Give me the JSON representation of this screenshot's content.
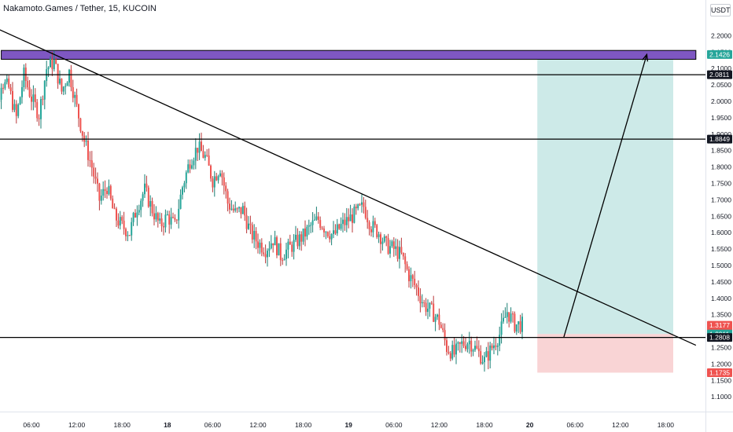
{
  "header": {
    "title": "Nakamoto.Games / Tether, 15, KUCOIN",
    "currency": "USDT"
  },
  "colors": {
    "up": "#26a69a",
    "down": "#ef5350",
    "wick_up": "#1b7f74",
    "wick_down": "#b8383a",
    "target_zone": "#b2dfdb",
    "stop_zone": "#f8c9ca",
    "resistance_box": "#7e57c2",
    "line": "#000000"
  },
  "chart_data": {
    "type": "candlestick",
    "title": "Nakamoto.Games / Tether, 15, KUCOIN",
    "exchange": "KUCOIN",
    "interval": "15",
    "ylim": [
      1.07,
      2.25
    ],
    "y_ticks": [
      "2.2000",
      "2.1500",
      "2.1000",
      "2.0500",
      "2.0000",
      "1.9500",
      "1.9000",
      "1.8500",
      "1.8000",
      "1.7500",
      "1.7000",
      "1.6500",
      "1.6000",
      "1.5500",
      "1.5000",
      "1.4500",
      "1.4000",
      "1.3500",
      "1.3000",
      "1.2500",
      "1.2000",
      "1.1500",
      "1.1000"
    ],
    "x_ticks": [
      "06:00",
      "12:00",
      "18:00",
      "18",
      "06:00",
      "12:00",
      "18:00",
      "19",
      "06:00",
      "12:00",
      "18:00",
      "20",
      "06:00",
      "12:00",
      "18:00"
    ],
    "x_tick_hours": [
      6,
      12,
      18,
      24,
      30,
      36,
      42,
      48,
      54,
      60,
      66,
      72,
      78,
      84,
      90
    ],
    "price_labels": [
      {
        "label": "2.1426",
        "value": 2.1426,
        "color": "#26a69a"
      },
      {
        "label": "2.0811",
        "value": 2.0811,
        "color": "#131722"
      },
      {
        "label": "1.8849",
        "value": 1.8849,
        "color": "#131722"
      },
      {
        "label": "1.3177",
        "value": 1.3177,
        "color": "#ef5350",
        "sub": "11:55"
      },
      {
        "label": "1.2911",
        "value": 1.2911,
        "color": "#26a69a"
      },
      {
        "label": "1.2808",
        "value": 1.2808,
        "color": "#131722"
      },
      {
        "label": "1.1735",
        "value": 1.1735,
        "color": "#ef5350"
      }
    ],
    "horizontal_lines": [
      2.0811,
      1.8849,
      1.2808
    ],
    "resistance_zone": {
      "from_hour": 2,
      "to_hour": 94,
      "top": 2.155,
      "bottom": 2.128
    },
    "trendline": [
      [
        -3,
        2.268
      ],
      [
        94,
        1.257
      ]
    ],
    "position": {
      "entry": 1.2911,
      "target": 2.1426,
      "stop": 1.1735,
      "from_hour": 73,
      "to_hour": 91
    },
    "arrow": [
      [
        76.5,
        1.2808
      ],
      [
        87.5,
        2.1426
      ]
    ],
    "candle_anchors": [
      [
        0,
        1.8
      ],
      [
        1,
        1.93
      ],
      [
        2,
        2.06
      ],
      [
        3,
        2.04
      ],
      [
        4,
        1.95
      ],
      [
        5,
        2.08
      ],
      [
        6,
        2.01
      ],
      [
        7,
        1.96
      ],
      [
        8,
        2.1
      ],
      [
        9,
        2.12
      ],
      [
        10,
        2.03
      ],
      [
        11,
        2.09
      ],
      [
        12,
        1.98
      ],
      [
        13,
        1.88
      ],
      [
        14,
        1.8
      ],
      [
        15,
        1.7
      ],
      [
        16,
        1.74
      ],
      [
        17,
        1.65
      ],
      [
        18,
        1.62
      ],
      [
        19,
        1.6
      ],
      [
        20,
        1.68
      ],
      [
        21,
        1.73
      ],
      [
        22,
        1.67
      ],
      [
        23,
        1.62
      ],
      [
        24,
        1.65
      ],
      [
        25,
        1.62
      ],
      [
        26,
        1.74
      ],
      [
        27,
        1.82
      ],
      [
        28,
        1.86
      ],
      [
        29,
        1.83
      ],
      [
        30,
        1.76
      ],
      [
        31,
        1.8
      ],
      [
        32,
        1.69
      ],
      [
        33,
        1.66
      ],
      [
        34,
        1.67
      ],
      [
        35,
        1.6
      ],
      [
        36,
        1.57
      ],
      [
        37,
        1.55
      ],
      [
        38,
        1.58
      ],
      [
        39,
        1.53
      ],
      [
        40,
        1.55
      ],
      [
        41,
        1.57
      ],
      [
        42,
        1.59
      ],
      [
        43,
        1.62
      ],
      [
        44,
        1.64
      ],
      [
        45,
        1.61
      ],
      [
        46,
        1.59
      ],
      [
        47,
        1.62
      ],
      [
        48,
        1.64
      ],
      [
        49,
        1.66
      ],
      [
        50,
        1.68
      ],
      [
        51,
        1.62
      ],
      [
        52,
        1.6
      ],
      [
        53,
        1.56
      ],
      [
        54,
        1.55
      ],
      [
        55,
        1.53
      ],
      [
        56,
        1.47
      ],
      [
        57,
        1.43
      ],
      [
        58,
        1.38
      ],
      [
        59,
        1.36
      ],
      [
        60,
        1.33
      ],
      [
        61,
        1.25
      ],
      [
        62,
        1.23
      ],
      [
        63,
        1.26
      ],
      [
        64,
        1.27
      ],
      [
        65,
        1.24
      ],
      [
        66,
        1.21
      ],
      [
        67,
        1.25
      ],
      [
        68,
        1.29
      ],
      [
        69,
        1.36
      ],
      [
        70,
        1.32
      ],
      [
        71,
        1.32
      ]
    ]
  }
}
